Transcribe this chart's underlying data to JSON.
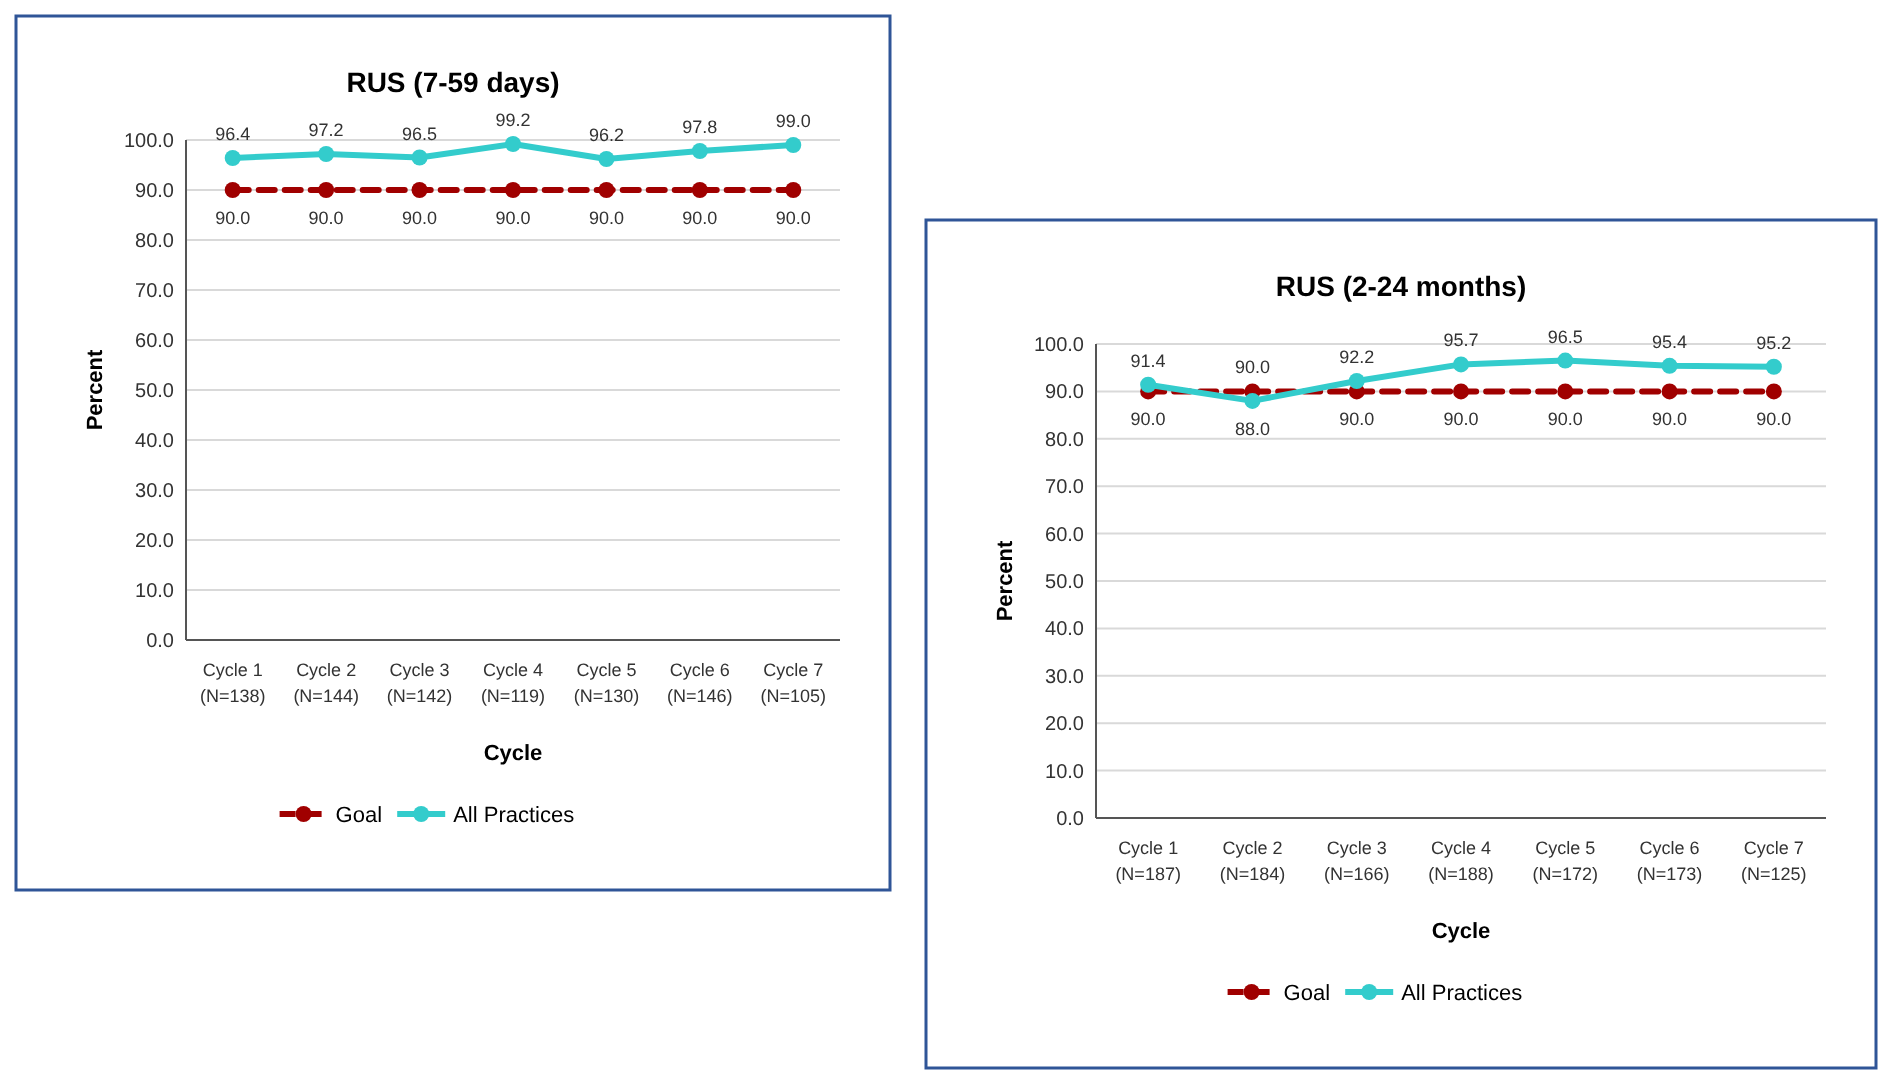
{
  "chart_data": [
    {
      "type": "line",
      "title": "RUS (7-59 days)",
      "xlabel": "Cycle",
      "ylabel": "Percent",
      "categories": [
        "Cycle 1\n(N=138)",
        "Cycle 2\n(N=144)",
        "Cycle 3\n(N=142)",
        "Cycle 4\n(N=119)",
        "Cycle 5\n(N=130)",
        "Cycle 6\n(N=146)",
        "Cycle 7\n(N=105)"
      ],
      "series": [
        {
          "name": "Goal",
          "color": "#a00000",
          "line_style": "dashed",
          "values": [
            90,
            90,
            90,
            90,
            90,
            90,
            90
          ],
          "value_labels": [
            "90.0",
            "90.0",
            "90.0",
            "90.0",
            "90.0",
            "90.0",
            "90.0"
          ]
        },
        {
          "name": "All Practices",
          "color": "#33cccc",
          "line_style": "solid",
          "values": [
            96.4,
            97.2,
            96.5,
            99.2,
            96.2,
            97.8,
            99
          ],
          "value_labels": [
            "96.4",
            "97.2",
            "96.5",
            "99.2",
            "96.2",
            "97.8",
            "99.0"
          ]
        }
      ],
      "ylim": [
        0,
        100
      ],
      "yticks": [
        {
          "value": 0,
          "label": "0.0"
        },
        {
          "value": 10,
          "label": "10.0"
        },
        {
          "value": 20,
          "label": "20.0"
        },
        {
          "value": 30,
          "label": "30.0"
        },
        {
          "value": 40,
          "label": "40.0"
        },
        {
          "value": 50,
          "label": "50.0"
        },
        {
          "value": 60,
          "label": "60.0"
        },
        {
          "value": 70,
          "label": "70.0"
        },
        {
          "value": 80,
          "label": "80.0"
        },
        {
          "value": 90,
          "label": "90.0"
        },
        {
          "value": 100,
          "label": "100.0"
        }
      ],
      "grid": "y",
      "legend": "bottom",
      "marker": "circle"
    },
    {
      "type": "line",
      "title": "RUS (2-24 months)",
      "xlabel": "Cycle",
      "ylabel": "Percent",
      "categories": [
        "Cycle 1\n(N=187)",
        "Cycle 2\n(N=184)",
        "Cycle 3\n(N=166)",
        "Cycle 4\n(N=188)",
        "Cycle 5\n(N=172)",
        "Cycle 6\n(N=173)",
        "Cycle 7\n(N=125)"
      ],
      "series": [
        {
          "name": "Goal",
          "color": "#a00000",
          "line_style": "dashed",
          "values": [
            90,
            90,
            90,
            90,
            90,
            90,
            90
          ],
          "value_labels": [
            "90.0",
            "90.0",
            "90.0",
            "90.0",
            "90.0",
            "90.0",
            "90.0"
          ]
        },
        {
          "name": "All Practices",
          "color": "#33cccc",
          "line_style": "solid",
          "values": [
            91.4,
            88,
            92.2,
            95.7,
            96.5,
            95.4,
            95.2
          ],
          "value_labels": [
            "91.4",
            "88.0",
            "92.2",
            "95.7",
            "96.5",
            "95.4",
            "95.2"
          ]
        }
      ],
      "ylim": [
        0,
        100
      ],
      "yticks": [
        {
          "value": 0,
          "label": "0.0"
        },
        {
          "value": 10,
          "label": "10.0"
        },
        {
          "value": 20,
          "label": "20.0"
        },
        {
          "value": 30,
          "label": "30.0"
        },
        {
          "value": 40,
          "label": "40.0"
        },
        {
          "value": 50,
          "label": "50.0"
        },
        {
          "value": 60,
          "label": "60.0"
        },
        {
          "value": 70,
          "label": "70.0"
        },
        {
          "value": 80,
          "label": "80.0"
        },
        {
          "value": 90,
          "label": "90.0"
        },
        {
          "value": 100,
          "label": "100.0"
        }
      ],
      "grid": "y",
      "legend": "bottom",
      "marker": "circle"
    }
  ]
}
